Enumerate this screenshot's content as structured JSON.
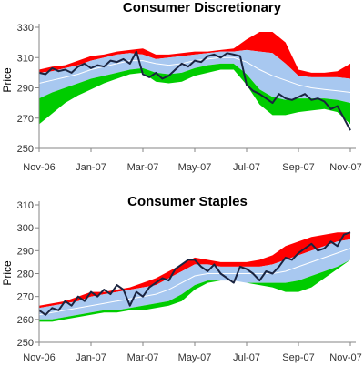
{
  "chart_data": [
    {
      "type": "area",
      "title": "Consumer Discretionary",
      "ylabel": "Price",
      "xlabel": "",
      "ylim": [
        250,
        330
      ],
      "yticks": [
        250,
        270,
        290,
        310,
        330
      ],
      "xlim": [
        0,
        12
      ],
      "xticks": [
        {
          "x": 0,
          "label": "Nov-06"
        },
        {
          "x": 2,
          "label": "Jan-07"
        },
        {
          "x": 4,
          "label": "Mar-07"
        },
        {
          "x": 6,
          "label": "May-07"
        },
        {
          "x": 8,
          "label": "Jul-07"
        },
        {
          "x": 10,
          "label": "Sep-07"
        },
        {
          "x": 12,
          "label": "Nov-07"
        }
      ],
      "grid": false,
      "legend": "none",
      "colors": {
        "upper": "#ff0000",
        "upper_mid": "#a8c8f0",
        "middle": "#ffffff",
        "lower_mid": "#a8c8f0",
        "lower": "#00cc00",
        "price": "#1a2440"
      },
      "series": [
        {
          "role": "band_top",
          "x": [
            0,
            0.5,
            1,
            1.5,
            2,
            2.5,
            3,
            3.5,
            4,
            4.5,
            5,
            5.5,
            6,
            6.5,
            7,
            7.5,
            8,
            8.5,
            9,
            9.5,
            10,
            10.5,
            11,
            11.5,
            12
          ],
          "values": [
            302,
            304,
            305,
            308,
            311,
            312,
            314,
            315,
            316,
            312,
            312,
            313,
            314,
            314,
            315,
            316,
            322,
            327,
            327,
            320,
            302,
            300,
            300,
            301,
            306
          ]
        },
        {
          "role": "upper_mid",
          "x": [
            0,
            0.5,
            1,
            1.5,
            2,
            2.5,
            3,
            3.5,
            4,
            4.5,
            5,
            5.5,
            6,
            6.5,
            7,
            7.5,
            8,
            8.5,
            9,
            9.5,
            10,
            10.5,
            11,
            11.5,
            12
          ],
          "values": [
            300,
            301,
            303,
            305,
            308,
            310,
            312,
            313,
            312,
            309,
            310,
            311,
            312,
            313,
            314,
            314,
            315,
            314,
            313,
            306,
            298,
            297,
            297,
            297,
            296
          ]
        },
        {
          "role": "middle",
          "x": [
            0,
            0.5,
            1,
            1.5,
            2,
            2.5,
            3,
            3.5,
            4,
            4.5,
            5,
            5.5,
            6,
            6.5,
            7,
            7.5,
            8,
            8.5,
            9,
            9.5,
            10,
            10.5,
            11,
            11.5,
            12
          ],
          "values": [
            293,
            295,
            297,
            299,
            302,
            304,
            306,
            308,
            308,
            306,
            305,
            306,
            308,
            309,
            310,
            310,
            307,
            302,
            298,
            295,
            292,
            290,
            289,
            288,
            287
          ]
        },
        {
          "role": "lower_mid",
          "x": [
            0,
            0.5,
            1,
            1.5,
            2,
            2.5,
            3,
            3.5,
            4,
            4.5,
            5,
            5.5,
            6,
            6.5,
            7,
            7.5,
            8,
            8.5,
            9,
            9.5,
            10,
            10.5,
            11,
            11.5,
            12
          ],
          "values": [
            283,
            287,
            290,
            293,
            296,
            298,
            300,
            302,
            303,
            300,
            299,
            300,
            303,
            305,
            306,
            306,
            299,
            289,
            284,
            282,
            283,
            283,
            283,
            282,
            280
          ]
        },
        {
          "role": "band_bottom",
          "x": [
            0,
            0.5,
            1,
            1.5,
            2,
            2.5,
            3,
            3.5,
            4,
            4.5,
            5,
            5.5,
            6,
            6.5,
            7,
            7.5,
            8,
            8.5,
            9,
            9.5,
            10,
            10.5,
            11,
            11.5,
            12
          ],
          "values": [
            266,
            273,
            280,
            285,
            289,
            293,
            296,
            299,
            300,
            294,
            293,
            294,
            298,
            300,
            302,
            302,
            292,
            279,
            272,
            272,
            274,
            275,
            276,
            274,
            266
          ]
        },
        {
          "role": "price",
          "x": [
            0,
            0.25,
            0.5,
            0.75,
            1,
            1.25,
            1.5,
            1.75,
            2,
            2.25,
            2.5,
            2.75,
            3,
            3.25,
            3.5,
            3.75,
            4,
            4.25,
            4.5,
            4.75,
            5,
            5.25,
            5.5,
            5.75,
            6,
            6.25,
            6.5,
            6.75,
            7,
            7.25,
            7.5,
            7.75,
            8,
            8.25,
            8.5,
            8.75,
            9,
            9.25,
            9.5,
            9.75,
            10,
            10.25,
            10.5,
            10.75,
            11,
            11.25,
            11.5,
            11.75,
            12
          ],
          "values": [
            300,
            299,
            303,
            301,
            302,
            300,
            304,
            306,
            303,
            305,
            304,
            308,
            307,
            309,
            306,
            314,
            299,
            297,
            300,
            296,
            298,
            302,
            306,
            304,
            308,
            307,
            311,
            312,
            310,
            313,
            312,
            311,
            292,
            288,
            286,
            283,
            280,
            286,
            283,
            282,
            284,
            286,
            282,
            283,
            281,
            276,
            278,
            270,
            262
          ]
        }
      ]
    },
    {
      "type": "area",
      "title": "Consumer Staples",
      "ylabel": "Price",
      "xlabel": "",
      "ylim": [
        250,
        310
      ],
      "yticks": [
        250,
        260,
        270,
        280,
        290,
        300,
        310
      ],
      "xlim": [
        0,
        12
      ],
      "xticks": [
        {
          "x": 0,
          "label": "Nov-06"
        },
        {
          "x": 2,
          "label": "Jan-07"
        },
        {
          "x": 4,
          "label": "Mar-07"
        },
        {
          "x": 6,
          "label": "May-07"
        },
        {
          "x": 8,
          "label": "Jul-07"
        },
        {
          "x": 10,
          "label": "Sep-07"
        },
        {
          "x": 12,
          "label": "Nov-07"
        }
      ],
      "grid": false,
      "legend": "none",
      "colors": {
        "upper": "#ff0000",
        "upper_mid": "#a8c8f0",
        "middle": "#ffffff",
        "lower_mid": "#a8c8f0",
        "lower": "#00cc00",
        "price": "#1a2440"
      },
      "series": [
        {
          "role": "band_top",
          "x": [
            0,
            0.5,
            1,
            1.5,
            2,
            2.5,
            3,
            3.5,
            4,
            4.5,
            5,
            5.5,
            6,
            6.5,
            7,
            7.5,
            8,
            8.5,
            9,
            9.5,
            10,
            10.5,
            11,
            11.5,
            12
          ],
          "values": [
            266,
            267,
            268,
            270,
            272,
            272,
            273,
            274,
            276,
            278,
            281,
            284,
            287,
            286,
            285,
            285,
            285,
            286,
            288,
            292,
            294,
            296,
            297,
            298,
            298
          ]
        },
        {
          "role": "upper_mid",
          "x": [
            0,
            0.5,
            1,
            1.5,
            2,
            2.5,
            3,
            3.5,
            4,
            4.5,
            5,
            5.5,
            6,
            6.5,
            7,
            7.5,
            8,
            8.5,
            9,
            9.5,
            10,
            10.5,
            11,
            11.5,
            12
          ],
          "values": [
            265,
            266,
            267,
            268,
            270,
            271,
            272,
            273,
            274,
            275,
            278,
            281,
            284,
            284,
            283,
            283,
            283,
            283,
            284,
            286,
            288,
            290,
            292,
            294,
            295
          ]
        },
        {
          "role": "middle",
          "x": [
            0,
            0.5,
            1,
            1.5,
            2,
            2.5,
            3,
            3.5,
            4,
            4.5,
            5,
            5.5,
            6,
            6.5,
            7,
            7.5,
            8,
            8.5,
            9,
            9.5,
            10,
            10.5,
            11,
            11.5,
            12
          ],
          "values": [
            262,
            263,
            264,
            265,
            266,
            267,
            268,
            269,
            270,
            271,
            273,
            276,
            279,
            280,
            280,
            280,
            280,
            280,
            280,
            281,
            283,
            285,
            287,
            289,
            291
          ]
        },
        {
          "role": "lower_mid",
          "x": [
            0,
            0.5,
            1,
            1.5,
            2,
            2.5,
            3,
            3.5,
            4,
            4.5,
            5,
            5.5,
            6,
            6.5,
            7,
            7.5,
            8,
            8.5,
            9,
            9.5,
            10,
            10.5,
            11,
            11.5,
            12
          ],
          "values": [
            260,
            260,
            261,
            262,
            263,
            264,
            264,
            265,
            266,
            267,
            268,
            271,
            275,
            277,
            277,
            277,
            276,
            276,
            276,
            276,
            277,
            279,
            281,
            283,
            286
          ]
        },
        {
          "role": "band_bottom",
          "x": [
            0,
            0.5,
            1,
            1.5,
            2,
            2.5,
            3,
            3.5,
            4,
            4.5,
            5,
            5.5,
            6,
            6.5,
            7,
            7.5,
            8,
            8.5,
            9,
            9.5,
            10,
            10.5,
            11,
            11.5,
            12
          ],
          "values": [
            259,
            259,
            260,
            261,
            262,
            263,
            263,
            264,
            264,
            265,
            266,
            268,
            273,
            276,
            277,
            277,
            276,
            275,
            274,
            272,
            272,
            274,
            278,
            282,
            286
          ]
        },
        {
          "role": "price",
          "x": [
            0,
            0.25,
            0.5,
            0.75,
            1,
            1.25,
            1.5,
            1.75,
            2,
            2.25,
            2.5,
            2.75,
            3,
            3.25,
            3.5,
            3.75,
            4,
            4.25,
            4.5,
            4.75,
            5,
            5.25,
            5.5,
            5.75,
            6,
            6.25,
            6.5,
            6.75,
            7,
            7.25,
            7.5,
            7.75,
            8,
            8.25,
            8.5,
            8.75,
            9,
            9.25,
            9.5,
            9.75,
            10,
            10.25,
            10.5,
            10.75,
            11,
            11.25,
            11.5,
            11.75,
            12
          ],
          "values": [
            264,
            262,
            265,
            264,
            268,
            266,
            270,
            268,
            272,
            270,
            273,
            271,
            275,
            273,
            266,
            272,
            270,
            274,
            276,
            278,
            277,
            282,
            284,
            286,
            286,
            283,
            281,
            284,
            280,
            278,
            276,
            283,
            282,
            280,
            277,
            281,
            280,
            283,
            287,
            286,
            289,
            291,
            293,
            290,
            291,
            294,
            292,
            297,
            298
          ]
        }
      ]
    }
  ]
}
